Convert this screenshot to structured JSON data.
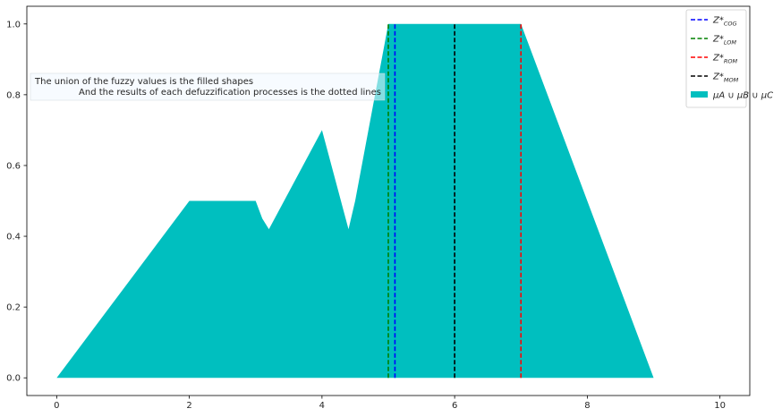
{
  "chart_data": {
    "type": "area",
    "title": "",
    "xlabel": "",
    "ylabel": "",
    "xlim": [
      -0.45,
      10.45
    ],
    "ylim": [
      -0.05,
      1.05
    ],
    "x_ticks": [
      0,
      2,
      4,
      6,
      8,
      10
    ],
    "x_tick_labels": [
      "0",
      "2",
      "4",
      "6",
      "8",
      "10"
    ],
    "y_ticks": [
      0.0,
      0.2,
      0.4,
      0.6,
      0.8,
      1.0
    ],
    "y_tick_labels": [
      "0.0",
      "0.2",
      "0.4",
      "0.6",
      "0.8",
      "1.0"
    ],
    "grid": false,
    "legend_position": "top-right",
    "area": {
      "color": "#00bfbf",
      "x": [
        0,
        2,
        3,
        3.1,
        3.2,
        4,
        4.4,
        4.5,
        5,
        7,
        9
      ],
      "y": [
        0,
        0.5,
        0.5,
        0.45,
        0.42,
        0.7,
        0.42,
        0.5,
        1,
        1,
        0
      ]
    },
    "vlines": [
      {
        "x": 5.1,
        "color": "#0000ff"
      },
      {
        "x": 5.0,
        "color": "#008000"
      },
      {
        "x": 7.0,
        "color": "#ff0000"
      },
      {
        "x": 6.0,
        "color": "#000000"
      }
    ],
    "legend": [
      {
        "main": "Z*",
        "sub": "COG",
        "color": "#0000ff",
        "kind": "dashed"
      },
      {
        "main": "Z*",
        "sub": "LOM",
        "color": "#008000",
        "kind": "dashed"
      },
      {
        "main": "Z*",
        "sub": "ROM",
        "color": "#ff0000",
        "kind": "dashed"
      },
      {
        "main": "Z*",
        "sub": "MOM",
        "color": "#000000",
        "kind": "dashed"
      },
      {
        "main": "μA ∪ μB ∪ μC",
        "sub": "",
        "color": "#00bfbf",
        "kind": "patch"
      }
    ],
    "annotation": {
      "line1": "The union of the fuzzy values is the filled shapes",
      "line2": "And the results of each defuzzification processes is the dotted lines"
    }
  }
}
